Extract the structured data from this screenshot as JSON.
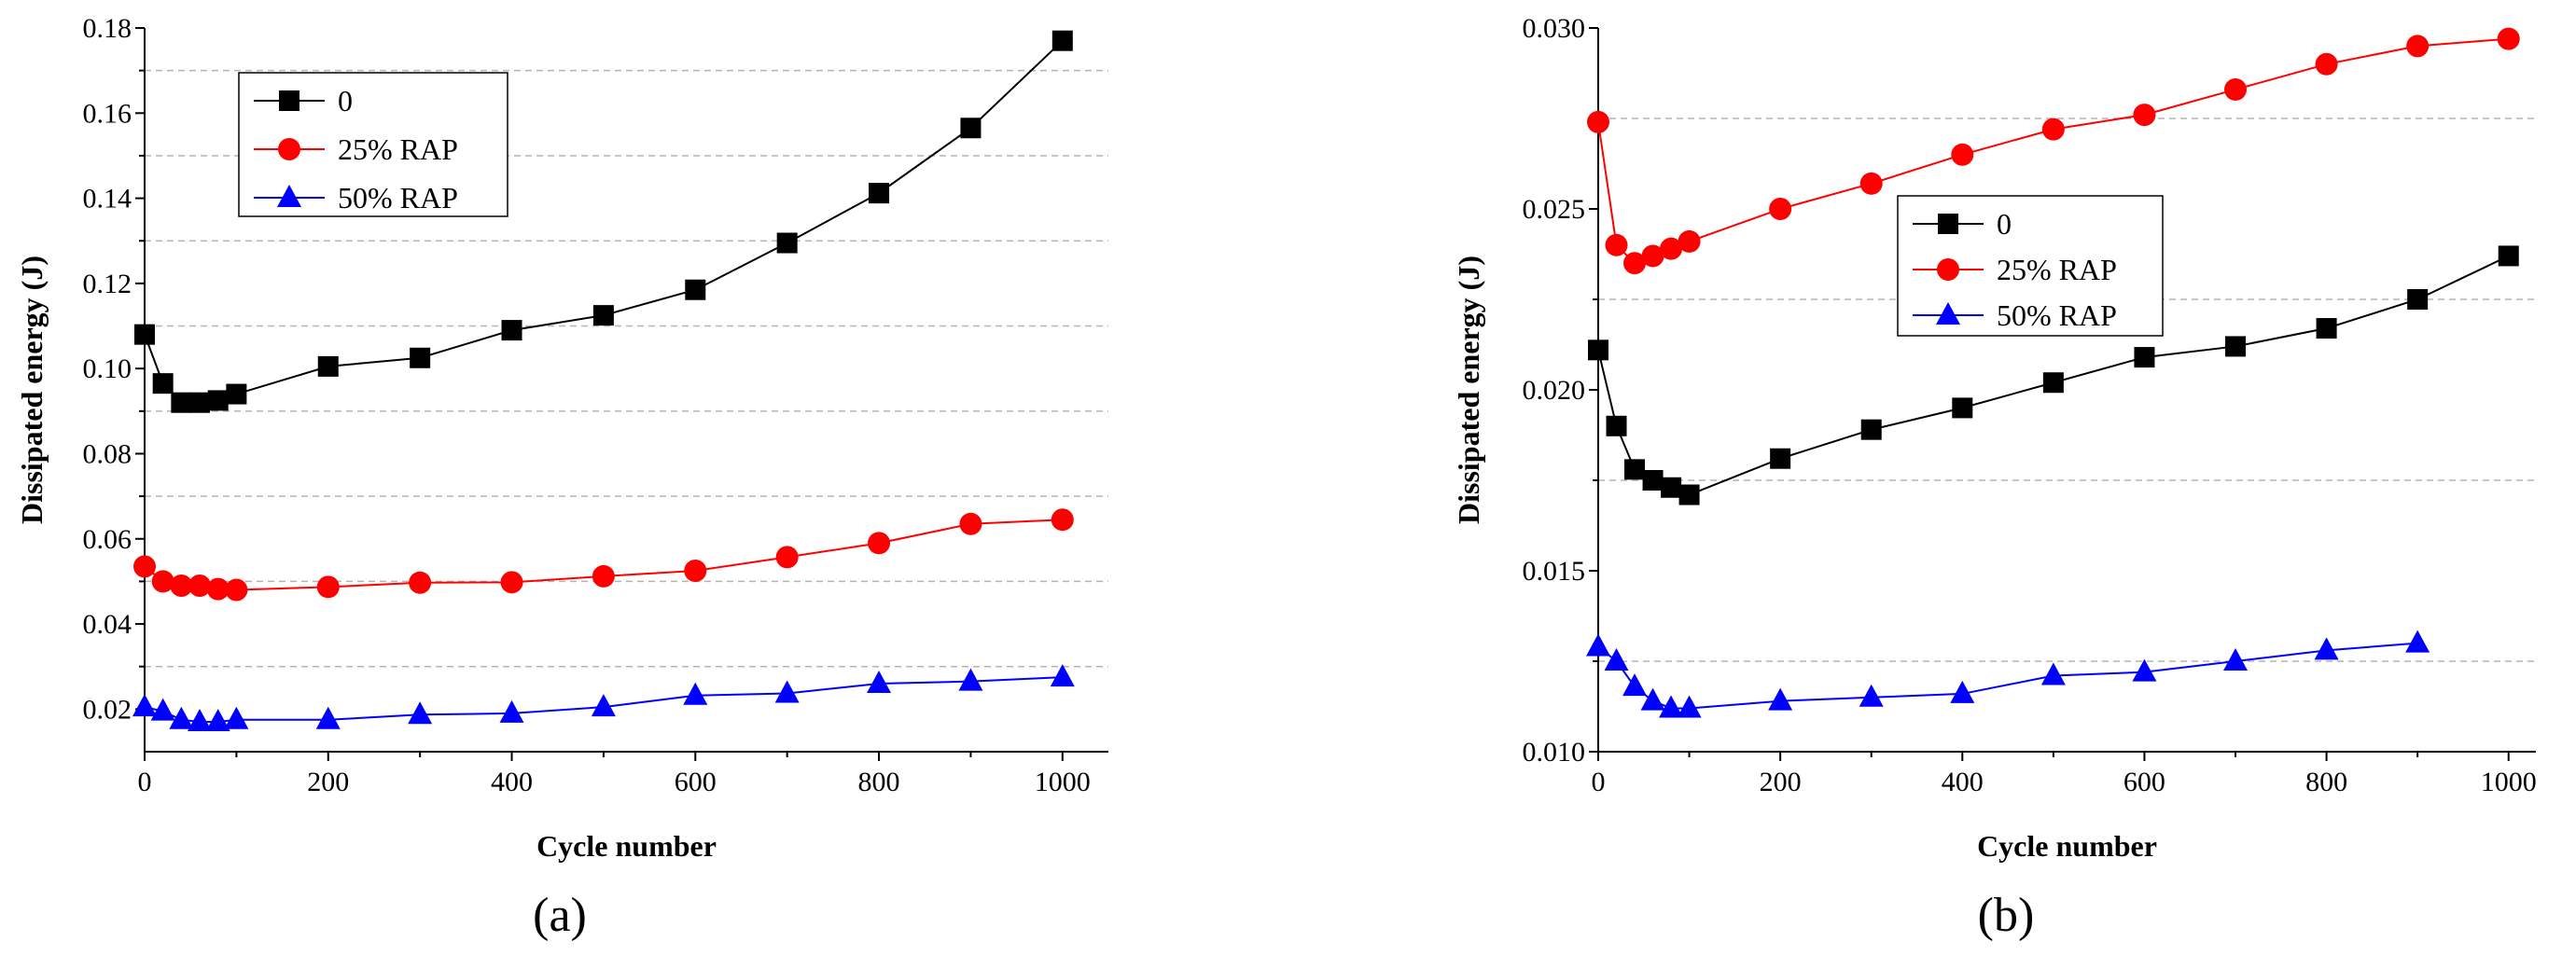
{
  "figure": {
    "panels": [
      "(a)",
      "(b)"
    ]
  },
  "chart_data": [
    {
      "type": "line",
      "panel_label": "(a)",
      "xlabel": "Cycle number",
      "ylabel": "Dissipated energy (J)",
      "xlim": [
        0,
        1050
      ],
      "ylim": [
        0.01,
        0.18
      ],
      "xticks": [
        0,
        200,
        400,
        600,
        800,
        1000
      ],
      "yticks": [
        0.02,
        0.04,
        0.06,
        0.08,
        0.1,
        0.12,
        0.14,
        0.16,
        0.18
      ],
      "ytick_labels": [
        "0.02",
        "0.04",
        "0.06",
        "0.08",
        "0.10",
        "0.12",
        "0.14",
        "0.16",
        "0.18"
      ],
      "gridlines_y": [
        0.03,
        0.05,
        0.07,
        0.09,
        0.11,
        0.13,
        0.15,
        0.17
      ],
      "legend_position": "top-left",
      "series": [
        {
          "name": "0",
          "color": "#000000",
          "marker": "square",
          "x": [
            0,
            20,
            40,
            60,
            80,
            100,
            200,
            300,
            400,
            500,
            600,
            700,
            800,
            900,
            1000
          ],
          "values": [
            0.108,
            0.0965,
            0.092,
            0.092,
            0.0925,
            0.094,
            0.1005,
            0.1025,
            0.109,
            0.1125,
            0.1185,
            0.1295,
            0.1412,
            0.1565,
            0.177
          ]
        },
        {
          "name": "25% RAP",
          "color": "#ff0000",
          "marker": "circle",
          "x": [
            0,
            20,
            40,
            60,
            80,
            100,
            200,
            300,
            400,
            500,
            600,
            700,
            800,
            900,
            1000
          ],
          "values": [
            0.0535,
            0.05,
            0.049,
            0.049,
            0.0482,
            0.048,
            0.0487,
            0.0497,
            0.0498,
            0.0512,
            0.0525,
            0.0557,
            0.059,
            0.0635,
            0.0645
          ]
        },
        {
          "name": "50% RAP",
          "color": "#0000ff",
          "marker": "triangle",
          "x": [
            0,
            20,
            40,
            60,
            80,
            100,
            200,
            300,
            400,
            500,
            600,
            700,
            800,
            900,
            1000
          ],
          "values": [
            0.0205,
            0.0195,
            0.0175,
            0.017,
            0.017,
            0.0175,
            0.0175,
            0.0187,
            0.019,
            0.0205,
            0.0232,
            0.0237,
            0.026,
            0.0265,
            0.0275
          ]
        }
      ]
    },
    {
      "type": "line",
      "panel_label": "(b)",
      "xlabel": "Cycle number",
      "ylabel": "Dissipated energy (J)",
      "xlim": [
        0,
        1030
      ],
      "ylim": [
        0.01,
        0.03
      ],
      "xticks": [
        0,
        200,
        400,
        600,
        800,
        1000
      ],
      "yticks": [
        0.01,
        0.015,
        0.02,
        0.025,
        0.03
      ],
      "ytick_labels": [
        "0.010",
        "0.015",
        "0.020",
        "0.025",
        "0.030"
      ],
      "gridlines_y": [
        0.0125,
        0.0175,
        0.0225,
        0.0275
      ],
      "legend_position": "center-left",
      "series": [
        {
          "name": "0",
          "color": "#000000",
          "marker": "square",
          "x": [
            0,
            20,
            40,
            60,
            80,
            100,
            200,
            300,
            400,
            500,
            600,
            700,
            800,
            900,
            1000
          ],
          "values": [
            0.0211,
            0.019,
            0.0178,
            0.0175,
            0.0173,
            0.0171,
            0.0181,
            0.0189,
            0.0195,
            0.0202,
            0.0209,
            0.0212,
            0.0217,
            0.0225,
            0.0237
          ]
        },
        {
          "name": "25% RAP",
          "color": "#ff0000",
          "marker": "circle",
          "x": [
            0,
            20,
            40,
            60,
            80,
            100,
            200,
            300,
            400,
            500,
            600,
            700,
            800,
            900,
            1000
          ],
          "values": [
            0.0274,
            0.024,
            0.0235,
            0.0237,
            0.0239,
            0.0241,
            0.025,
            0.0257,
            0.0265,
            0.0272,
            0.0276,
            0.0283,
            0.029,
            0.0295,
            0.0297
          ]
        },
        {
          "name": "50% RAP",
          "color": "#0000ff",
          "marker": "triangle",
          "x": [
            0,
            20,
            40,
            60,
            80,
            100,
            200,
            300,
            400,
            500,
            600,
            700,
            800,
            900
          ],
          "values": [
            0.0129,
            0.0125,
            0.0118,
            0.0114,
            0.0112,
            0.0112,
            0.0114,
            0.0115,
            0.0116,
            0.0121,
            0.0122,
            0.0125,
            0.0128,
            0.013
          ]
        }
      ]
    }
  ]
}
